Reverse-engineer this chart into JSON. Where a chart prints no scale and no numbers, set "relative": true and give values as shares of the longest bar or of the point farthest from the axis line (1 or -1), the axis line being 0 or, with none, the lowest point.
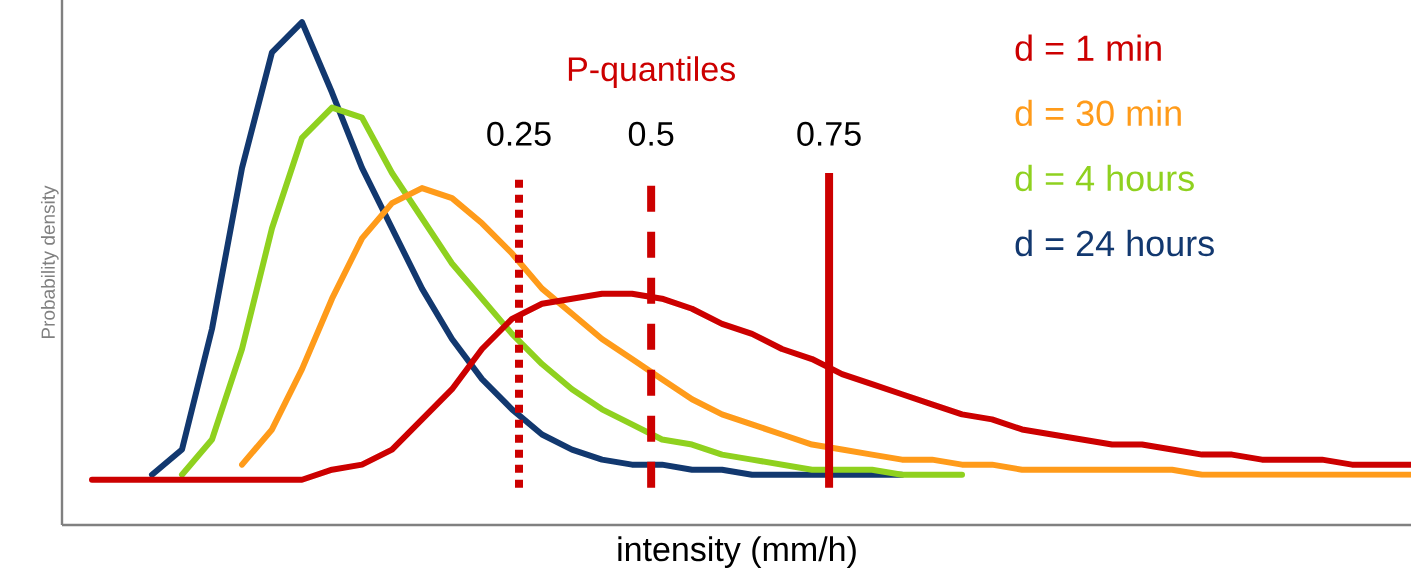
{
  "chart_data": {
    "type": "line",
    "relative": true,
    "xlabel": "intensity (mm/h)",
    "ylabel": "Probability density",
    "categories": [
      null,
      null,
      null,
      null,
      null,
      null,
      null,
      null,
      null,
      null,
      null,
      null,
      null,
      null,
      null,
      null,
      null,
      null,
      null,
      null,
      null,
      null,
      null,
      null,
      null,
      null,
      null,
      null,
      null,
      null,
      null,
      null,
      null,
      null,
      null,
      null,
      null,
      null,
      null,
      null,
      null,
      null,
      null,
      null,
      null
    ],
    "series": [
      {
        "name": "d = 1 min",
        "color": "#cc0000",
        "values": [
          0.09,
          0.09,
          0.09,
          0.09,
          0.09,
          0.09,
          0.09,
          0.09,
          0.11,
          0.12,
          0.15,
          0.21,
          0.27,
          0.35,
          0.41,
          0.44,
          0.45,
          0.46,
          0.46,
          0.45,
          0.43,
          0.4,
          0.38,
          0.35,
          0.33,
          0.3,
          0.28,
          0.26,
          0.24,
          0.22,
          0.21,
          0.19,
          0.18,
          0.17,
          0.16,
          0.16,
          0.15,
          0.14,
          0.14,
          0.13,
          0.13,
          0.13,
          0.12,
          0.12,
          0.12
        ]
      },
      {
        "name": "d = 30 min",
        "color": "#ff9b1a",
        "values": [
          null,
          null,
          null,
          null,
          null,
          0.12,
          0.19,
          0.31,
          0.45,
          0.57,
          0.64,
          0.67,
          0.65,
          0.6,
          0.54,
          0.47,
          0.42,
          0.37,
          0.33,
          0.29,
          0.25,
          0.22,
          0.2,
          0.18,
          0.16,
          0.15,
          0.14,
          0.13,
          0.13,
          0.12,
          0.12,
          0.11,
          0.11,
          0.11,
          0.11,
          0.11,
          0.11,
          0.1,
          0.1,
          0.1,
          0.1,
          0.1,
          0.1,
          0.1,
          0.1
        ]
      },
      {
        "name": "d = 4 hours",
        "color": "#8fd11f",
        "values": [
          null,
          null,
          null,
          0.1,
          0.17,
          0.35,
          0.59,
          0.77,
          0.83,
          0.81,
          0.7,
          0.61,
          0.52,
          0.45,
          0.38,
          0.32,
          0.27,
          0.23,
          0.2,
          0.17,
          0.16,
          0.14,
          0.13,
          0.12,
          0.11,
          0.11,
          0.11,
          0.1,
          0.1,
          0.1,
          null,
          null,
          null,
          null,
          null,
          null,
          null,
          null,
          null,
          null,
          null,
          null,
          null,
          null,
          null
        ]
      },
      {
        "name": "d = 24 hours",
        "color": "#12386f",
        "values": [
          null,
          null,
          0.1,
          0.15,
          0.39,
          0.71,
          0.94,
          1.0,
          0.86,
          0.71,
          0.59,
          0.47,
          0.37,
          0.29,
          0.23,
          0.18,
          0.15,
          0.13,
          0.12,
          0.12,
          0.11,
          0.11,
          0.1,
          0.1,
          0.1,
          0.1,
          0.1,
          0.1,
          null,
          null,
          null,
          null,
          null,
          null,
          null,
          null,
          null,
          null,
          null,
          null,
          null,
          null,
          null,
          null,
          null
        ]
      }
    ],
    "annotations": [
      "P-quantiles",
      "0.25",
      "0.5",
      "0.75"
    ],
    "legend": "top right"
  }
}
